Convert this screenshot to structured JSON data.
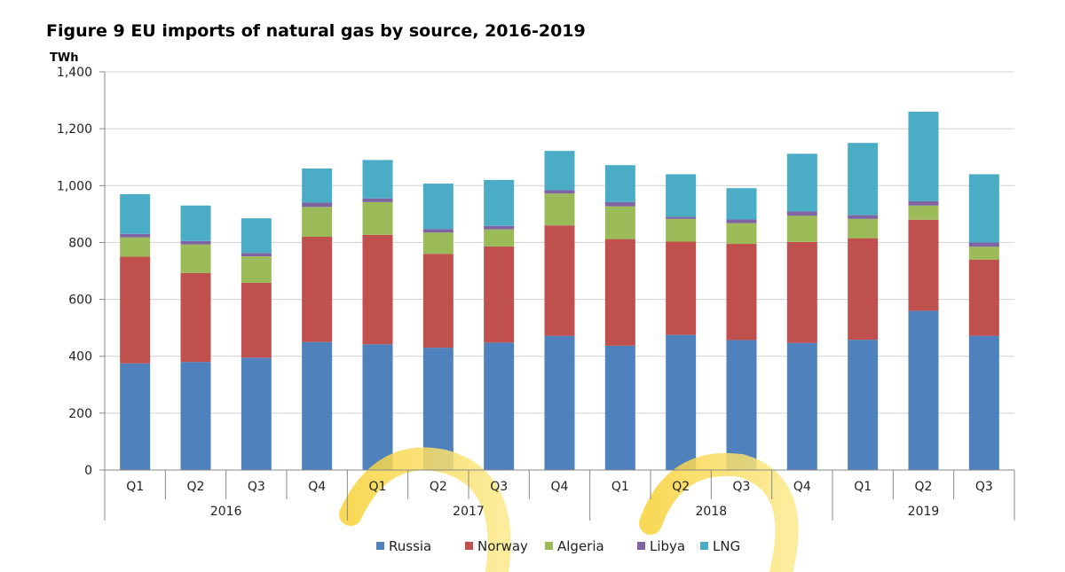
{
  "figure_title": "Figure 9 EU imports of natural gas by source, 2016-2019",
  "chart_data": {
    "type": "bar",
    "stacked": true,
    "title": "Figure 9 EU imports of natural gas by source, 2016-2019",
    "ylabel": "TWh",
    "xlabel": "",
    "ylim": [
      0,
      1400
    ],
    "yticks": [
      0,
      200,
      400,
      600,
      800,
      1000,
      1200,
      1400
    ],
    "ytick_labels": [
      "0",
      "200",
      "400",
      "600",
      "800",
      "1,000",
      "1,200",
      "1,400"
    ],
    "grid": true,
    "legend_position": "bottom",
    "categories": [
      "Q1",
      "Q2",
      "Q3",
      "Q4",
      "Q1",
      "Q2",
      "Q3",
      "Q4",
      "Q1",
      "Q2",
      "Q3",
      "Q4",
      "Q1",
      "Q2",
      "Q3"
    ],
    "groups": [
      {
        "label": "2016",
        "count": 4
      },
      {
        "label": "2017",
        "count": 4
      },
      {
        "label": "2018",
        "count": 4
      },
      {
        "label": "2019",
        "count": 3
      }
    ],
    "series": [
      {
        "name": "Russia",
        "color": "#4f81bd",
        "values": [
          375,
          380,
          395,
          450,
          442,
          430,
          448,
          472,
          437,
          475,
          457,
          447,
          458,
          560,
          472
        ]
      },
      {
        "name": "Norway",
        "color": "#c0504d",
        "values": [
          375,
          313,
          263,
          370,
          385,
          330,
          338,
          388,
          375,
          328,
          338,
          355,
          357,
          320,
          268
        ]
      },
      {
        "name": "Algeria",
        "color": "#9bbb59",
        "values": [
          68,
          100,
          93,
          105,
          115,
          75,
          60,
          112,
          115,
          80,
          73,
          92,
          68,
          50,
          45
        ]
      },
      {
        "name": "Libya",
        "color": "#8064a2",
        "values": [
          12,
          12,
          12,
          15,
          13,
          12,
          12,
          12,
          15,
          7,
          13,
          15,
          13,
          15,
          15
        ]
      },
      {
        "name": "LNG",
        "color": "#4bacc6",
        "values": [
          140,
          125,
          122,
          120,
          135,
          160,
          162,
          138,
          130,
          150,
          110,
          203,
          254,
          315,
          240
        ]
      }
    ]
  }
}
